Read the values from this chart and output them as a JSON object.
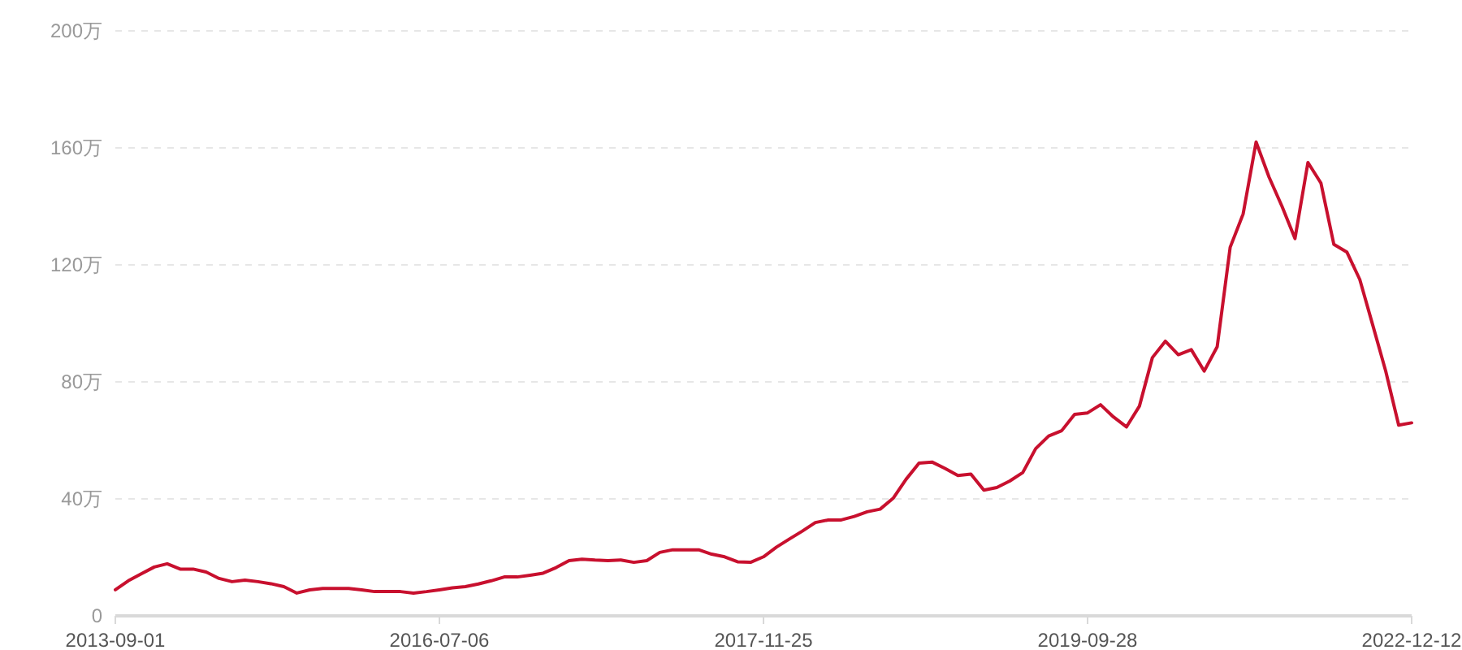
{
  "chart_data": {
    "type": "line",
    "categories": [
      "2013-09-01",
      null,
      null,
      null,
      null,
      null,
      null,
      null,
      null,
      null,
      null,
      null,
      null,
      null,
      null,
      null,
      null,
      null,
      null,
      null,
      null,
      null,
      null,
      null,
      null,
      "2016-07-06",
      null,
      null,
      null,
      null,
      null,
      null,
      null,
      null,
      null,
      null,
      null,
      null,
      null,
      null,
      null,
      null,
      null,
      null,
      null,
      null,
      null,
      null,
      null,
      null,
      "2017-11-25",
      null,
      null,
      null,
      null,
      null,
      null,
      null,
      null,
      null,
      null,
      null,
      null,
      null,
      null,
      null,
      null,
      null,
      null,
      null,
      null,
      null,
      null,
      null,
      null,
      "2019-09-28",
      null,
      null,
      null,
      null,
      null,
      null,
      null,
      null,
      null,
      null,
      null,
      null,
      null,
      null,
      null,
      null,
      null,
      null,
      null,
      null,
      null,
      null,
      null,
      null,
      "2022-12-12"
    ],
    "series": [
      {
        "color": "#c8102e",
        "values": [
          8.9,
          12,
          14.4,
          16.7,
          17.8,
          16,
          16,
          15,
          12.8,
          11.7,
          12.2,
          11.7,
          11,
          10,
          7.8,
          8.9,
          9.4,
          9.4,
          9.4,
          8.9,
          8.3,
          8.3,
          8.3,
          7.8,
          8.3,
          8.9,
          9.6,
          10,
          10.9,
          12,
          13.3,
          13.3,
          13.9,
          14.6,
          16.5,
          18.9,
          19.4,
          19.1,
          18.9,
          19.1,
          18.3,
          18.9,
          21.7,
          22.6,
          22.6,
          22.6,
          21.1,
          20.2,
          18.5,
          18.3,
          20.2,
          23.5,
          26.3,
          29,
          31.9,
          32.8,
          32.8,
          34,
          35.6,
          36.5,
          40.2,
          46.7,
          52.2,
          52.6,
          50.4,
          48,
          48.5,
          43,
          43.9,
          46.1,
          49,
          57.2,
          61.5,
          63.3,
          68.9,
          69.4,
          72.2,
          68,
          64.6,
          71.7,
          88.3,
          93.9,
          89.3,
          91,
          83.7,
          92,
          126,
          137.4,
          162,
          150,
          140,
          129,
          155,
          148,
          127,
          124.4,
          115,
          99.4,
          83.7,
          65.2,
          66
        ]
      }
    ],
    "ylim": [
      0,
      200
    ],
    "yticks": [
      0,
      {
        "value": 40,
        "label": "40万"
      },
      {
        "value": 80,
        "label": "80万"
      },
      {
        "value": 120,
        "label": "120万"
      },
      {
        "value": 160,
        "label": "160万"
      },
      {
        "value": 200,
        "label": "200万"
      }
    ],
    "grid": "y"
  }
}
